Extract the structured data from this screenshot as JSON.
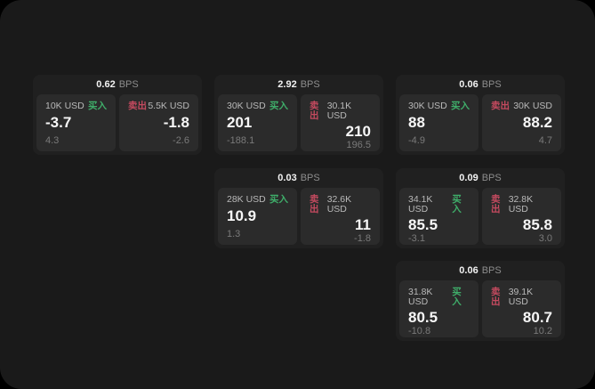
{
  "labels": {
    "bps": "BPS",
    "buy": "买入",
    "sell": "卖出"
  },
  "colors": {
    "page_background": "#000000",
    "surface": "#1a1a1a",
    "card": "#202020",
    "tile": "#2b2b2b",
    "buy_accent": "#3fae6a",
    "sell_accent": "#c44a5f",
    "value_text": "#f7f7f7",
    "muted_text": "#7a7a7a"
  },
  "cards": [
    {
      "bps": "0.62",
      "buy": {
        "amount": "10K USD",
        "value": "-3.7",
        "delta": "4.3"
      },
      "sell": {
        "amount": "5.5K USD",
        "value": "-1.8",
        "delta": "-2.6"
      }
    },
    {
      "bps": "2.92",
      "buy": {
        "amount": "30K USD",
        "value": "201",
        "delta": "-188.1"
      },
      "sell": {
        "amount": "30.1K USD",
        "value": "210",
        "delta": "196.5"
      }
    },
    {
      "bps": "0.06",
      "buy": {
        "amount": "30K USD",
        "value": "88",
        "delta": "-4.9"
      },
      "sell": {
        "amount": "30K USD",
        "value": "88.2",
        "delta": "4.7"
      }
    },
    {
      "bps": "0.03",
      "buy": {
        "amount": "28K USD",
        "value": "10.9",
        "delta": "1.3"
      },
      "sell": {
        "amount": "32.6K USD",
        "value": "11",
        "delta": "-1.8"
      }
    },
    {
      "bps": "0.09",
      "buy": {
        "amount": "34.1K USD",
        "value": "85.5",
        "delta": "-3.1"
      },
      "sell": {
        "amount": "32.8K USD",
        "value": "85.8",
        "delta": "3.0"
      }
    },
    {
      "bps": "0.06",
      "buy": {
        "amount": "31.8K USD",
        "value": "80.5",
        "delta": "-10.8"
      },
      "sell": {
        "amount": "39.1K USD",
        "value": "80.7",
        "delta": "10.2"
      }
    }
  ]
}
